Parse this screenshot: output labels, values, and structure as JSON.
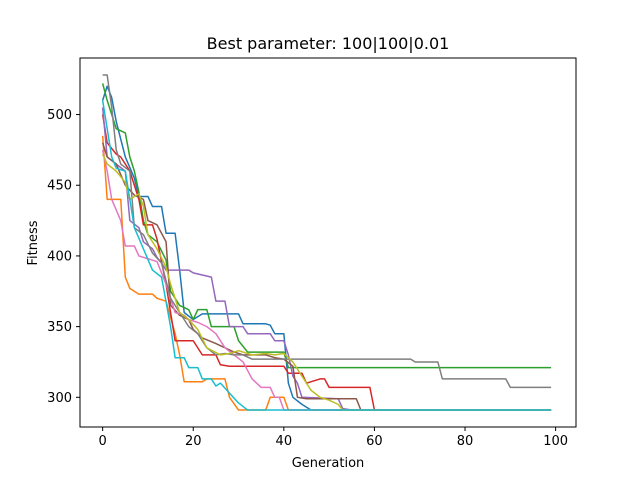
{
  "chart_data": {
    "type": "line",
    "title": "Best parameter: 100|100|0.01",
    "xlabel": "Generation",
    "ylabel": "Fitness",
    "xlim": [
      -5,
      104.5
    ],
    "ylim": [
      279,
      540
    ],
    "xticks": [
      0,
      20,
      40,
      60,
      80,
      100
    ],
    "yticks": [
      300,
      350,
      400,
      450,
      500
    ],
    "grid": false,
    "legend": "none",
    "series": [
      {
        "color": "#1f77b4",
        "points": [
          [
            0,
            510
          ],
          [
            1,
            520
          ],
          [
            2,
            512
          ],
          [
            3,
            495
          ],
          [
            5,
            470
          ],
          [
            7,
            455
          ],
          [
            8,
            442
          ],
          [
            10,
            442
          ],
          [
            11,
            435
          ],
          [
            13,
            435
          ],
          [
            14,
            416
          ],
          [
            16,
            416
          ],
          [
            17,
            390
          ],
          [
            18,
            360
          ],
          [
            20,
            355
          ],
          [
            22,
            359
          ],
          [
            30,
            359
          ],
          [
            31,
            352
          ],
          [
            36,
            352
          ],
          [
            37,
            351
          ],
          [
            38,
            345
          ],
          [
            40,
            345
          ],
          [
            41,
            310
          ],
          [
            42,
            300
          ],
          [
            44,
            295
          ],
          [
            46,
            291
          ],
          [
            99,
            291
          ]
        ]
      },
      {
        "color": "#ff7f0e",
        "points": [
          [
            0,
            485
          ],
          [
            1,
            440
          ],
          [
            4,
            440
          ],
          [
            5,
            385
          ],
          [
            6,
            377
          ],
          [
            8,
            373
          ],
          [
            11,
            373
          ],
          [
            12,
            370
          ],
          [
            14,
            368
          ],
          [
            16,
            345
          ],
          [
            17,
            330
          ],
          [
            18,
            311
          ],
          [
            22,
            311
          ],
          [
            23,
            313
          ],
          [
            27,
            313
          ],
          [
            28,
            300
          ],
          [
            30,
            291
          ],
          [
            36,
            291
          ],
          [
            37,
            300
          ],
          [
            40,
            300
          ],
          [
            41,
            291
          ],
          [
            99,
            291
          ]
        ]
      },
      {
        "color": "#2ca02c",
        "points": [
          [
            0,
            522
          ],
          [
            1,
            510
          ],
          [
            2,
            500
          ],
          [
            3,
            490
          ],
          [
            5,
            487
          ],
          [
            6,
            470
          ],
          [
            7,
            460
          ],
          [
            8,
            445
          ],
          [
            9,
            425
          ],
          [
            10,
            415
          ],
          [
            12,
            410
          ],
          [
            14,
            397
          ],
          [
            15,
            375
          ],
          [
            17,
            365
          ],
          [
            19,
            362
          ],
          [
            20,
            355
          ],
          [
            21,
            362
          ],
          [
            23,
            362
          ],
          [
            24,
            350
          ],
          [
            29,
            350
          ],
          [
            30,
            340
          ],
          [
            32,
            332
          ],
          [
            40,
            332
          ],
          [
            41,
            321
          ],
          [
            99,
            321
          ]
        ]
      },
      {
        "color": "#d62728",
        "points": [
          [
            0,
            500
          ],
          [
            1,
            480
          ],
          [
            3,
            472
          ],
          [
            4,
            470
          ],
          [
            6,
            460
          ],
          [
            8,
            440
          ],
          [
            9,
            422
          ],
          [
            11,
            422
          ],
          [
            12,
            412
          ],
          [
            14,
            380
          ],
          [
            16,
            340
          ],
          [
            20,
            340
          ],
          [
            22,
            330
          ],
          [
            25,
            330
          ],
          [
            26,
            323
          ],
          [
            28,
            322
          ],
          [
            40,
            322
          ],
          [
            41,
            317
          ],
          [
            44,
            317
          ],
          [
            45,
            310
          ],
          [
            48,
            313
          ],
          [
            49,
            313
          ],
          [
            50,
            307
          ],
          [
            59,
            307
          ],
          [
            60,
            291
          ],
          [
            99,
            291
          ]
        ]
      },
      {
        "color": "#9467bd",
        "points": [
          [
            0,
            505
          ],
          [
            1,
            470
          ],
          [
            3,
            465
          ],
          [
            5,
            460
          ],
          [
            6,
            425
          ],
          [
            8,
            420
          ],
          [
            9,
            410
          ],
          [
            11,
            405
          ],
          [
            12,
            399
          ],
          [
            13,
            395
          ],
          [
            14,
            390
          ],
          [
            19,
            390
          ],
          [
            20,
            388
          ],
          [
            24,
            385
          ],
          [
            25,
            368
          ],
          [
            27,
            368
          ],
          [
            28,
            350
          ],
          [
            31,
            350
          ],
          [
            32,
            345
          ],
          [
            34,
            345
          ],
          [
            37,
            345
          ],
          [
            38,
            340
          ],
          [
            40,
            340
          ],
          [
            41,
            330
          ],
          [
            42,
            315
          ],
          [
            43,
            310
          ],
          [
            44,
            300
          ],
          [
            52,
            299
          ],
          [
            53,
            292
          ],
          [
            55,
            291
          ],
          [
            99,
            291
          ]
        ]
      },
      {
        "color": "#8c564b",
        "points": [
          [
            0,
            480
          ],
          [
            1,
            470
          ],
          [
            3,
            465
          ],
          [
            5,
            450
          ],
          [
            7,
            443
          ],
          [
            9,
            440
          ],
          [
            10,
            425
          ],
          [
            12,
            422
          ],
          [
            14,
            410
          ],
          [
            15,
            365
          ],
          [
            17,
            358
          ],
          [
            19,
            355
          ],
          [
            20,
            348
          ],
          [
            22,
            342
          ],
          [
            25,
            338
          ],
          [
            27,
            335
          ],
          [
            29,
            332
          ],
          [
            31,
            330
          ],
          [
            34,
            330
          ],
          [
            36,
            330
          ],
          [
            38,
            328
          ],
          [
            40,
            327
          ],
          [
            42,
            322
          ],
          [
            43,
            300
          ],
          [
            45,
            299
          ],
          [
            56,
            299
          ],
          [
            57,
            291
          ],
          [
            99,
            291
          ]
        ]
      },
      {
        "color": "#e377c2",
        "points": [
          [
            0,
            475
          ],
          [
            1,
            460
          ],
          [
            2,
            440
          ],
          [
            4,
            425
          ],
          [
            5,
            407
          ],
          [
            7,
            407
          ],
          [
            8,
            400
          ],
          [
            10,
            398
          ],
          [
            12,
            396
          ],
          [
            14,
            380
          ],
          [
            16,
            360
          ],
          [
            18,
            358
          ],
          [
            19,
            355
          ],
          [
            21,
            353
          ],
          [
            23,
            350
          ],
          [
            25,
            345
          ],
          [
            27,
            335
          ],
          [
            29,
            330
          ],
          [
            31,
            325
          ],
          [
            33,
            313
          ],
          [
            35,
            307
          ],
          [
            37,
            307
          ],
          [
            38,
            300
          ],
          [
            39,
            300
          ],
          [
            40,
            291
          ],
          [
            99,
            291
          ]
        ]
      },
      {
        "color": "#7f7f7f",
        "points": [
          [
            0,
            528
          ],
          [
            1,
            528
          ],
          [
            2,
            505
          ],
          [
            3,
            475
          ],
          [
            4,
            465
          ],
          [
            6,
            460
          ],
          [
            7,
            420
          ],
          [
            9,
            415
          ],
          [
            11,
            402
          ],
          [
            13,
            395
          ],
          [
            15,
            370
          ],
          [
            17,
            360
          ],
          [
            19,
            350
          ],
          [
            21,
            345
          ],
          [
            23,
            335
          ],
          [
            25,
            330
          ],
          [
            27,
            331
          ],
          [
            29,
            330
          ],
          [
            31,
            330
          ],
          [
            33,
            327
          ],
          [
            35,
            327
          ],
          [
            37,
            327
          ],
          [
            39,
            327
          ],
          [
            41,
            327
          ],
          [
            43,
            327
          ],
          [
            68,
            327
          ],
          [
            69,
            325
          ],
          [
            74,
            325
          ],
          [
            75,
            313
          ],
          [
            89,
            313
          ],
          [
            90,
            307
          ],
          [
            99,
            307
          ]
        ]
      },
      {
        "color": "#bcbd22",
        "points": [
          [
            0,
            472
          ],
          [
            1,
            465
          ],
          [
            3,
            460
          ],
          [
            5,
            452
          ],
          [
            6,
            440
          ],
          [
            8,
            444
          ],
          [
            9,
            435
          ],
          [
            10,
            415
          ],
          [
            12,
            405
          ],
          [
            14,
            392
          ],
          [
            15,
            380
          ],
          [
            17,
            360
          ],
          [
            19,
            355
          ],
          [
            21,
            348
          ],
          [
            23,
            335
          ],
          [
            26,
            330
          ],
          [
            28,
            331
          ],
          [
            30,
            333
          ],
          [
            33,
            330
          ],
          [
            36,
            331
          ],
          [
            38,
            330
          ],
          [
            40,
            331
          ],
          [
            42,
            325
          ],
          [
            44,
            315
          ],
          [
            46,
            305
          ],
          [
            48,
            300
          ],
          [
            50,
            298
          ],
          [
            52,
            295
          ],
          [
            53,
            291
          ],
          [
            99,
            291
          ]
        ]
      },
      {
        "color": "#17becf",
        "points": [
          [
            0,
            510
          ],
          [
            1,
            490
          ],
          [
            2,
            470
          ],
          [
            3,
            462
          ],
          [
            5,
            460
          ],
          [
            6,
            440
          ],
          [
            7,
            420
          ],
          [
            9,
            405
          ],
          [
            11,
            390
          ],
          [
            13,
            385
          ],
          [
            15,
            350
          ],
          [
            16,
            328
          ],
          [
            18,
            328
          ],
          [
            19,
            321
          ],
          [
            21,
            321
          ],
          [
            22,
            313
          ],
          [
            24,
            313
          ],
          [
            25,
            308
          ],
          [
            26,
            310
          ],
          [
            28,
            303
          ],
          [
            30,
            296
          ],
          [
            32,
            291
          ],
          [
            99,
            291
          ]
        ]
      }
    ]
  }
}
